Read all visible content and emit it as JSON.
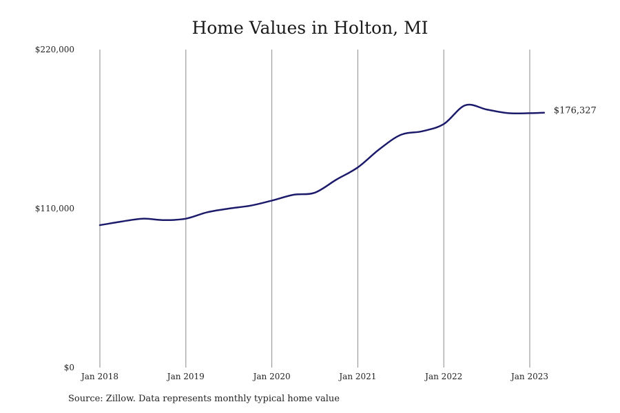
{
  "chart_data": {
    "type": "line",
    "title": "Home Values in Holton, MI",
    "xlabel": "",
    "ylabel": "",
    "ylim": [
      0,
      220000
    ],
    "y_ticks": [
      "$0",
      "$110,000",
      "$220,000"
    ],
    "y_tick_values": [
      0,
      110000,
      220000
    ],
    "x_ticks": [
      "Jan 2018",
      "Jan 2019",
      "Jan 2020",
      "Jan 2021",
      "Jan 2022",
      "Jan 2023"
    ],
    "x_range": [
      "2018-01",
      "2023-03"
    ],
    "grid": "vertical lines at each January",
    "line_color": "#1b1a6b",
    "end_label": "$176,327",
    "series": [
      {
        "x": [
          "2018-01",
          "2018-04",
          "2018-07",
          "2018-10",
          "2019-01",
          "2019-04",
          "2019-07",
          "2019-10",
          "2020-01",
          "2020-04",
          "2020-07",
          "2020-10",
          "2021-01",
          "2021-04",
          "2021-07",
          "2021-10",
          "2022-01",
          "2022-04",
          "2022-07",
          "2022-10",
          "2023-01",
          "2023-03"
        ],
        "values": [
          98500,
          101000,
          103000,
          102000,
          103000,
          107500,
          110000,
          112000,
          115500,
          119500,
          121000,
          130000,
          138500,
          151000,
          161000,
          163500,
          168500,
          181500,
          178500,
          176000,
          176000,
          176327
        ]
      }
    ]
  },
  "source_note": "Source: Zillow. Data represents monthly typical home value"
}
